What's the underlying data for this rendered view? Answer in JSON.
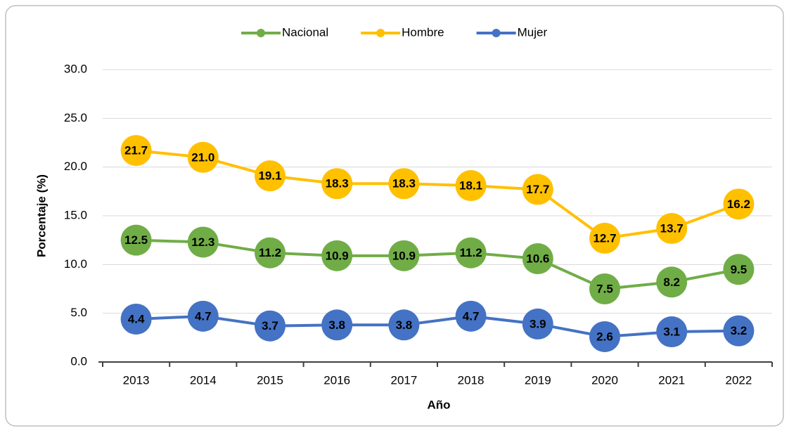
{
  "chart_data": {
    "type": "line",
    "categories": [
      "2013",
      "2014",
      "2015",
      "2016",
      "2017",
      "2018",
      "2019",
      "2020",
      "2021",
      "2022"
    ],
    "series": [
      {
        "name": "Nacional",
        "color": "#70ad47",
        "values": [
          12.5,
          12.3,
          11.2,
          10.9,
          10.9,
          11.2,
          10.6,
          7.5,
          8.2,
          9.5
        ],
        "value_labels": [
          "12.5",
          "12.3",
          "11.2",
          "10.9",
          "10.9",
          "11.2",
          "10.6",
          "7.5",
          "8.2",
          "9.5"
        ]
      },
      {
        "name": "Hombre",
        "color": "#ffc000",
        "values": [
          21.7,
          21.0,
          19.1,
          18.3,
          18.3,
          18.1,
          17.7,
          12.7,
          13.7,
          16.2
        ],
        "value_labels": [
          "21.7",
          "21.0",
          "19.1",
          "18.3",
          "18.3",
          "18.1",
          "17.7",
          "12.7",
          "13.7",
          "16.2"
        ]
      },
      {
        "name": "Mujer",
        "color": "#4472c4",
        "values": [
          4.4,
          4.7,
          3.7,
          3.8,
          3.8,
          4.7,
          3.9,
          2.6,
          3.1,
          3.2
        ],
        "value_labels": [
          "4.4",
          "4.7",
          "3.7",
          "3.8",
          "3.8",
          "4.7",
          "3.9",
          "2.6",
          "3.1",
          "3.2"
        ]
      }
    ],
    "x_label": "Año",
    "y_label": "Porcentaje (%)",
    "ylim": [
      0,
      30
    ],
    "yticks": [
      {
        "value": 0,
        "label": "0.0"
      },
      {
        "value": 5,
        "label": "5.0"
      },
      {
        "value": 10,
        "label": "10.0"
      },
      {
        "value": 15,
        "label": "15.0"
      },
      {
        "value": 20,
        "label": "20.0"
      },
      {
        "value": 25,
        "label": "25.0"
      },
      {
        "value": 30,
        "label": "30.0"
      }
    ],
    "grid": true,
    "legend": "top"
  }
}
